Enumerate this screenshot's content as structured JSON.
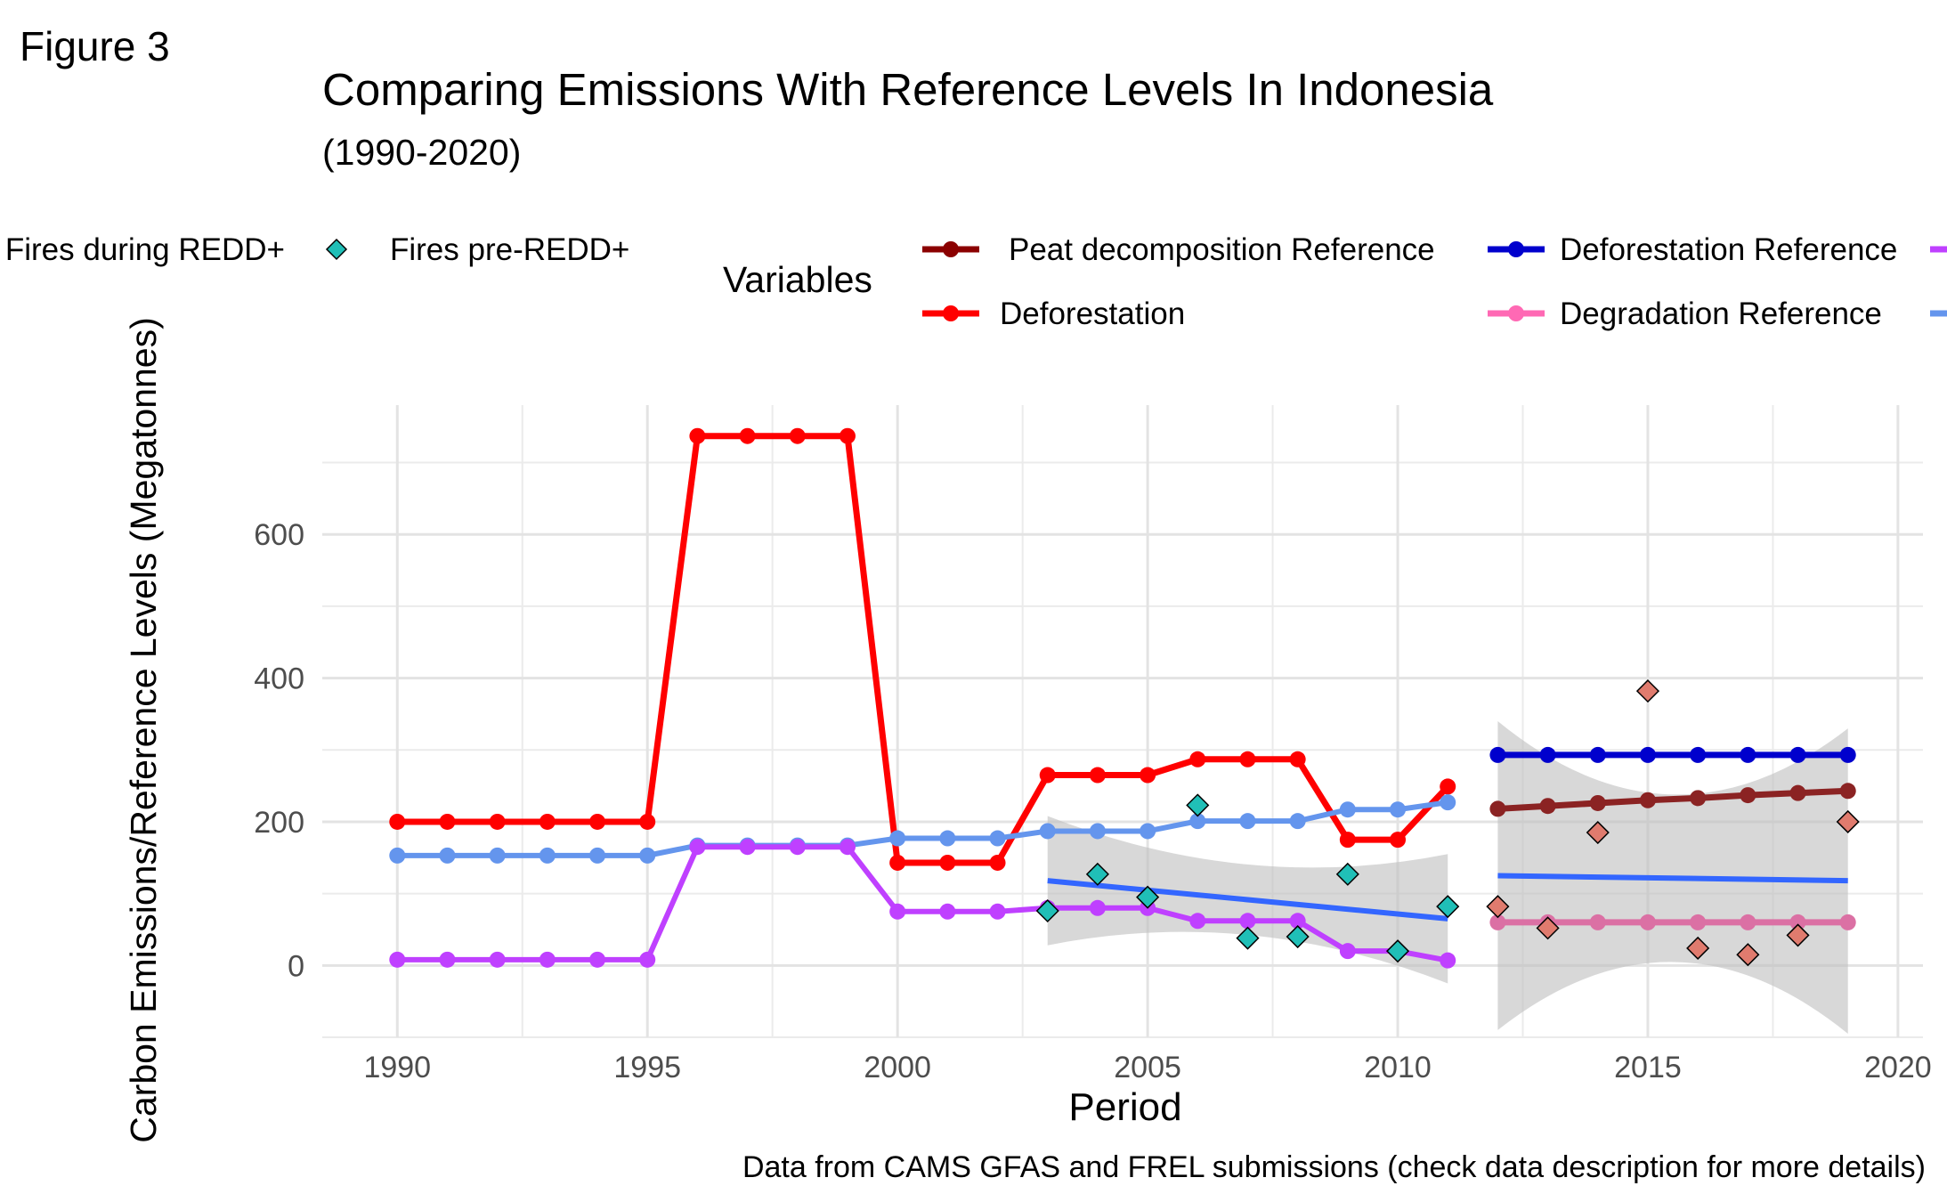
{
  "figure_label": "Figure 3",
  "chart_data": {
    "type": "line",
    "title": "Comparing Emissions With Reference Levels In Indonesia",
    "subtitle": "(1990-2020)",
    "xlabel": "Period",
    "ylabel": "Carbon Emissions/Reference Levels (Megatonnes)",
    "caption": "Data from CAMS GFAS and FREL submissions (check data description for more details)",
    "legend_title": "Variables",
    "legend_position": "top",
    "grid": true,
    "xlim": [
      1988.5,
      2020.5
    ],
    "ylim": [
      -100,
      780
    ],
    "x_ticks": [
      1990,
      1995,
      2000,
      2005,
      2010,
      2015,
      2020
    ],
    "y_ticks": [
      0,
      200,
      400,
      600
    ],
    "legend_entries": [
      {
        "label": "Fires during REDD+",
        "color": "#E07B6E",
        "kind": "diamond"
      },
      {
        "label": "Fires pre-REDD+",
        "color": "#20BFB7",
        "kind": "diamond"
      },
      {
        "label": "Peat decomposition Reference",
        "color": "#8B0000",
        "kind": "line"
      },
      {
        "label": "Deforestation",
        "color": "#FF0000",
        "kind": "line"
      },
      {
        "label": "Deforestation Reference",
        "color": "#0000CD",
        "kind": "line"
      },
      {
        "label": "Degradation Reference",
        "color": "#FF69B4",
        "kind": "line"
      },
      {
        "label": "",
        "color": "#BF40FF",
        "kind": "line"
      },
      {
        "label": "",
        "color": "#6495ED",
        "kind": "line"
      }
    ],
    "series": [
      {
        "name": "Deforestation",
        "color": "#FF0000",
        "width": 7,
        "x": [
          1990,
          1991,
          1992,
          1993,
          1994,
          1995,
          1996,
          1997,
          1998,
          1999,
          2000,
          2001,
          2002,
          2003,
          2004,
          2005,
          2006,
          2007,
          2008,
          2009,
          2010,
          2011
        ],
        "y": [
          200,
          200,
          200,
          200,
          200,
          200,
          737,
          737,
          737,
          737,
          143,
          143,
          143,
          265,
          265,
          265,
          287,
          287,
          287,
          175,
          175,
          249
        ]
      },
      {
        "name": "",
        "color": "#6495ED",
        "width": 6,
        "x": [
          1990,
          1991,
          1992,
          1993,
          1994,
          1995,
          1996,
          1997,
          1998,
          1999,
          2000,
          2001,
          2002,
          2003,
          2004,
          2005,
          2006,
          2007,
          2008,
          2009,
          2010,
          2011
        ],
        "y": [
          153,
          153,
          153,
          153,
          153,
          153,
          167,
          167,
          167,
          167,
          177,
          177,
          177,
          187,
          187,
          187,
          201,
          201,
          201,
          217,
          217,
          227
        ]
      },
      {
        "name": "",
        "color": "#BF40FF",
        "width": 6,
        "x": [
          1990,
          1991,
          1992,
          1993,
          1994,
          1995,
          1996,
          1997,
          1998,
          1999,
          2000,
          2001,
          2002,
          2003,
          2004,
          2005,
          2006,
          2007,
          2008,
          2009,
          2010,
          2011
        ],
        "y": [
          8,
          8,
          8,
          8,
          8,
          8,
          165,
          165,
          165,
          165,
          75,
          75,
          75,
          80,
          80,
          80,
          62,
          62,
          62,
          20,
          20,
          7
        ]
      },
      {
        "name": "Deforestation Reference",
        "color": "#0000CD",
        "width": 7,
        "x": [
          2012,
          2013,
          2014,
          2015,
          2016,
          2017,
          2018,
          2019
        ],
        "y": [
          293,
          293,
          293,
          293,
          293,
          293,
          293,
          293
        ]
      },
      {
        "name": "Peat decomposition Reference",
        "color": "#8B2323",
        "width": 7,
        "x": [
          2012,
          2013,
          2014,
          2015,
          2016,
          2017,
          2018,
          2019
        ],
        "y": [
          218,
          222,
          226,
          230,
          233,
          237,
          240,
          243
        ]
      },
      {
        "name": "Degradation Reference",
        "color": "#DB70A4",
        "width": 7,
        "x": [
          2012,
          2013,
          2014,
          2015,
          2016,
          2017,
          2018,
          2019
        ],
        "y": [
          60,
          60,
          60,
          60,
          60,
          60,
          60,
          60
        ]
      }
    ],
    "scatter": [
      {
        "name": "Fires pre-REDD+",
        "color": "#20BFB7",
        "x": [
          2003,
          2004,
          2005,
          2006,
          2007,
          2008,
          2009,
          2010,
          2011
        ],
        "y": [
          76,
          127,
          95,
          223,
          38,
          40,
          127,
          20,
          82
        ]
      },
      {
        "name": "Fires during REDD+",
        "color": "#E07B6E",
        "x": [
          2012,
          2013,
          2014,
          2015,
          2016,
          2017,
          2018,
          2019
        ],
        "y": [
          82,
          52,
          185,
          382,
          24,
          15,
          42,
          200
        ]
      }
    ],
    "trends": [
      {
        "x": [
          2003,
          2011
        ],
        "y": [
          118,
          65
        ],
        "lower": [
          28,
          -25
        ],
        "upper": [
          208,
          155
        ],
        "color": "#3366FF"
      },
      {
        "x": [
          2012,
          2019
        ],
        "y": [
          125,
          118
        ],
        "lower": [
          -90,
          -95
        ],
        "upper": [
          340,
          330
        ],
        "color": "#3366FF"
      }
    ]
  }
}
